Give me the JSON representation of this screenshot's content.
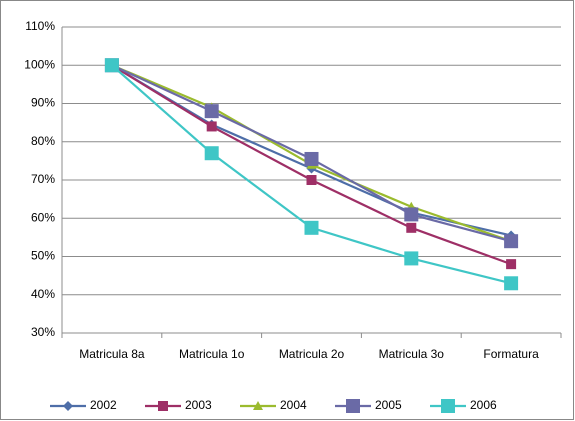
{
  "chart_data": {
    "type": "line",
    "categories": [
      "Matricula 8a",
      "Matricula 1o",
      "Matricula 2o",
      "Matricula 3o",
      "Formatura"
    ],
    "series": [
      {
        "name": "2002",
        "color": "#4e6ea8",
        "marker": "diamond",
        "values": [
          100,
          84.5,
          73,
          61.5,
          55.5
        ]
      },
      {
        "name": "2003",
        "color": "#9e2f66",
        "marker": "square",
        "values": [
          100,
          84,
          70,
          57.5,
          48
        ]
      },
      {
        "name": "2004",
        "color": "#9bbb2e",
        "marker": "triangle",
        "values": [
          100,
          89,
          74,
          63,
          54
        ]
      },
      {
        "name": "2005",
        "color": "#6a6aa6",
        "marker": "bigsquare",
        "values": [
          100,
          88,
          75.5,
          61,
          54
        ]
      },
      {
        "name": "2006",
        "color": "#3fc6c6",
        "marker": "bigsquare",
        "values": [
          100,
          77,
          57.5,
          49.5,
          43
        ]
      }
    ],
    "ylim": [
      30,
      110
    ],
    "yticks": [
      {
        "value": 30,
        "label": "30%"
      },
      {
        "value": 40,
        "label": "40%"
      },
      {
        "value": 50,
        "label": "50%"
      },
      {
        "value": 60,
        "label": "60%"
      },
      {
        "value": 70,
        "label": "70%"
      },
      {
        "value": 80,
        "label": "80%"
      },
      {
        "value": 90,
        "label": "90%"
      },
      {
        "value": 100,
        "label": "100%"
      },
      {
        "value": 110,
        "label": "110%"
      }
    ],
    "grid": true
  }
}
